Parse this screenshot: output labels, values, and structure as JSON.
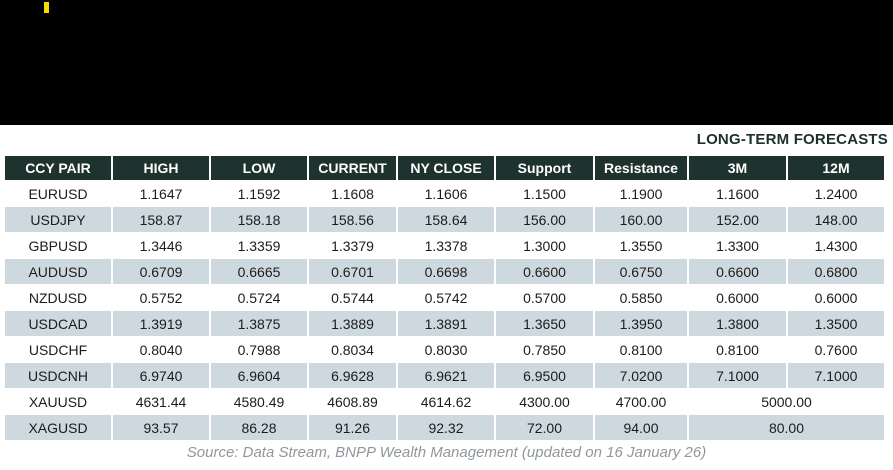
{
  "page": {
    "long_term_label": "LONG-TERM FORECASTS"
  },
  "banner": {
    "accent_color": "#f7d800",
    "background_color": "#000000"
  },
  "table": {
    "columns": [
      "CCY PAIR",
      "HIGH",
      "LOW",
      "CURRENT",
      "NY CLOSE",
      "Support",
      "Resistance",
      "3M",
      "12M"
    ],
    "header_bg_color": "#1e322e",
    "alt_row_color": "#cdd9df",
    "rows": [
      {
        "pair": "EURUSD",
        "cells": [
          "1.1647",
          "1.1592",
          "1.1608",
          "1.1606",
          "1.1500",
          "1.1900",
          "1.1600",
          "1.2400"
        ]
      },
      {
        "pair": "USDJPY",
        "cells": [
          "158.87",
          "158.18",
          "158.56",
          "158.64",
          "156.00",
          "160.00",
          "152.00",
          "148.00"
        ]
      },
      {
        "pair": "GBPUSD",
        "cells": [
          "1.3446",
          "1.3359",
          "1.3379",
          "1.3378",
          "1.3000",
          "1.3550",
          "1.3300",
          "1.4300"
        ]
      },
      {
        "pair": "AUDUSD",
        "cells": [
          "0.6709",
          "0.6665",
          "0.6701",
          "0.6698",
          "0.6600",
          "0.6750",
          "0.6600",
          "0.6800"
        ]
      },
      {
        "pair": "NZDUSD",
        "cells": [
          "0.5752",
          "0.5724",
          "0.5744",
          "0.5742",
          "0.5700",
          "0.5850",
          "0.6000",
          "0.6000"
        ]
      },
      {
        "pair": "USDCAD",
        "cells": [
          "1.3919",
          "1.3875",
          "1.3889",
          "1.3891",
          "1.3650",
          "1.3950",
          "1.3800",
          "1.3500"
        ]
      },
      {
        "pair": "USDCHF",
        "cells": [
          "0.8040",
          "0.7988",
          "0.8034",
          "0.8030",
          "0.7850",
          "0.8100",
          "0.8100",
          "0.7600"
        ]
      },
      {
        "pair": "USDCNH",
        "cells": [
          "6.9740",
          "6.9604",
          "6.9628",
          "6.9621",
          "6.9500",
          "7.0200",
          "7.1000",
          "7.1000"
        ]
      },
      {
        "pair": "XAUUSD",
        "cells": [
          "4631.44",
          "4580.49",
          "4608.89",
          "4614.62",
          "4300.00",
          "4700.00"
        ],
        "merged_3m_12m": "5000.00"
      },
      {
        "pair": "XAGUSD",
        "cells": [
          "93.57",
          "86.28",
          "91.26",
          "92.32",
          "72.00",
          "94.00"
        ],
        "merged_3m_12m": "80.00"
      }
    ]
  },
  "footer": {
    "source": "Source: Data Stream, BNPP Wealth Management (updated on 16 January 26)"
  }
}
